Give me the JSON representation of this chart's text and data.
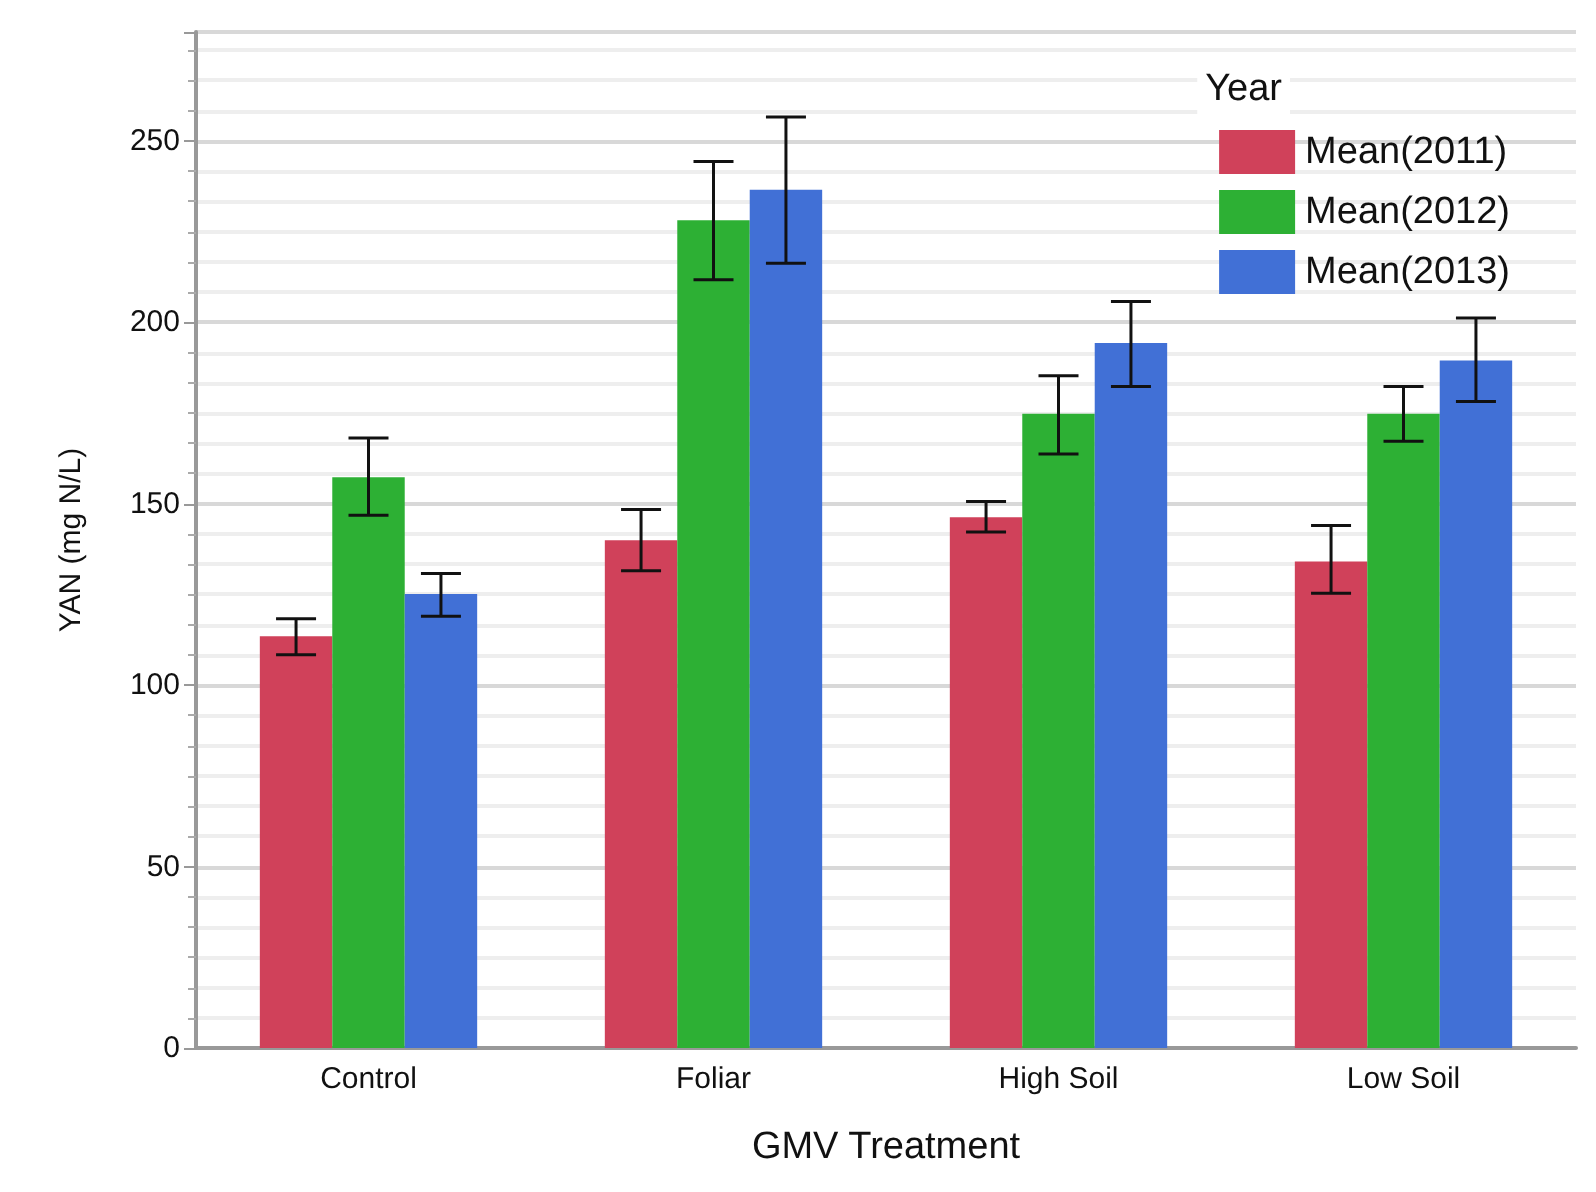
{
  "chart_data": {
    "type": "bar",
    "xlabel": "GMV Treatment",
    "ylabel": "YAN (mg N/L)",
    "legend_title": "Year",
    "legend": "top right",
    "grid": "y",
    "categories": [
      "Control",
      "Foliar",
      "High Soil",
      "Low Soil"
    ],
    "ylim": [
      0,
      280
    ],
    "yticks": [
      0,
      50,
      100,
      150,
      200,
      250
    ],
    "series": [
      {
        "name": "Mean(2011)",
        "color": "#d0415a",
        "values": [
          113.5,
          139.9,
          146.3,
          134.1
        ],
        "errors": [
          [
            108.4,
            118.3
          ],
          [
            131.5,
            148.4
          ],
          [
            142.2,
            150.6
          ],
          [
            125.3,
            144.0
          ]
        ]
      },
      {
        "name": "Mean(2012)",
        "color": "#2db034",
        "values": [
          157.3,
          228.1,
          174.8,
          174.8
        ],
        "errors": [
          [
            146.8,
            168.1
          ],
          [
            211.7,
            244.3
          ],
          [
            163.7,
            185.3
          ],
          [
            167.2,
            182.3
          ]
        ]
      },
      {
        "name": "Mean(2013)",
        "color": "#4170d6",
        "values": [
          125.1,
          236.5,
          194.3,
          189.5
        ],
        "errors": [
          [
            119.0,
            130.8
          ],
          [
            216.3,
            256.6
          ],
          [
            182.3,
            205.7
          ],
          [
            178.2,
            201.2
          ]
        ]
      }
    ]
  }
}
